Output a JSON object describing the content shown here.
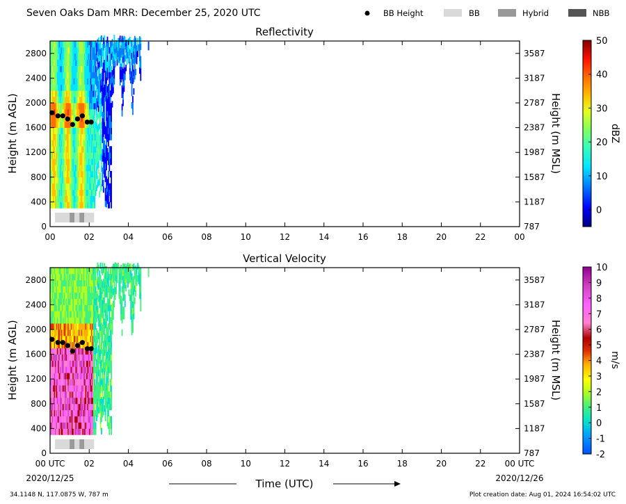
{
  "header": {
    "title": "Seven Oaks Dam MRR:  December 25, 2020 UTC",
    "legend": [
      "BB Height",
      "BB",
      "Hybrid",
      "NBB"
    ]
  },
  "footer": {
    "location": "34.1148 N, 117.0875 W, 787 m",
    "creation": "Plot creation date: Aug 01, 2024 16:54:02 UTC",
    "date_left": "2020/12/25",
    "date_right": "2020/12/26"
  },
  "colors": {
    "bb_light": "#d9d9d9",
    "hybrid": "#999999",
    "nbb": "#555555"
  },
  "chart_data": [
    {
      "type": "heatmap",
      "title": "Reflectivity",
      "xlabel": "Time (UTC)",
      "ylabel": "Height (m AGL)",
      "ylabel_right": "Height (m MSL)",
      "xlim": [
        0,
        24
      ],
      "ylim": [
        0,
        3000
      ],
      "xticks": [
        "00",
        "02",
        "04",
        "06",
        "08",
        "10",
        "12",
        "14",
        "16",
        "18",
        "20",
        "22",
        "00"
      ],
      "yticks": [
        0,
        400,
        800,
        1200,
        1600,
        2000,
        2400,
        2800
      ],
      "yticks_right": [
        "787",
        "1187",
        "1587",
        "1987",
        "2387",
        "2787",
        "3187",
        "3587"
      ],
      "colorbar": {
        "label": "dBZ",
        "min": -5,
        "max": 50,
        "ticks": [
          0,
          10,
          20,
          30,
          40,
          50
        ]
      },
      "bb_height": {
        "time": [
          0.1,
          0.4,
          0.65,
          0.9,
          1.15,
          1.4,
          1.65,
          1.9,
          2.1
        ],
        "height": [
          1840,
          1790,
          1790,
          1740,
          1650,
          1740,
          1790,
          1690,
          1690
        ]
      },
      "bb_type": [
        {
          "start": 0.25,
          "end": 1.0,
          "kind": "BB"
        },
        {
          "start": 1.0,
          "end": 1.25,
          "kind": "Hybrid"
        },
        {
          "start": 1.25,
          "end": 1.5,
          "kind": "BB"
        },
        {
          "start": 1.5,
          "end": 1.75,
          "kind": "Hybrid"
        },
        {
          "start": 1.75,
          "end": 2.25,
          "kind": "BB"
        }
      ]
    },
    {
      "type": "heatmap",
      "title": "Vertical Velocity",
      "xlabel": "Time (UTC)",
      "ylabel": "Height (m AGL)",
      "ylabel_right": "Height (m MSL)",
      "xlim": [
        0,
        24
      ],
      "ylim": [
        0,
        3000
      ],
      "xticks": [
        "00 UTC",
        "02",
        "04",
        "06",
        "08",
        "10",
        "12",
        "14",
        "16",
        "18",
        "20",
        "22",
        "00 UTC"
      ],
      "yticks": [
        0,
        400,
        800,
        1200,
        1600,
        2000,
        2400,
        2800
      ],
      "yticks_right": [
        "787",
        "1187",
        "1587",
        "1987",
        "2387",
        "2787",
        "3187",
        "3587"
      ],
      "colorbar": {
        "label": "m/s",
        "min": -2,
        "max": 10,
        "ticks": [
          -2,
          -1,
          0,
          1,
          2,
          3,
          4,
          5,
          6,
          7,
          8,
          9,
          10
        ]
      },
      "bb_height": {
        "time": [
          0.1,
          0.4,
          0.65,
          0.9,
          1.15,
          1.4,
          1.65,
          1.9,
          2.1
        ],
        "height": [
          1840,
          1790,
          1790,
          1740,
          1650,
          1740,
          1790,
          1690,
          1690
        ]
      },
      "bb_type": [
        {
          "start": 0.25,
          "end": 1.0,
          "kind": "BB"
        },
        {
          "start": 1.0,
          "end": 1.25,
          "kind": "Hybrid"
        },
        {
          "start": 1.25,
          "end": 1.5,
          "kind": "BB"
        },
        {
          "start": 1.5,
          "end": 1.75,
          "kind": "Hybrid"
        },
        {
          "start": 1.75,
          "end": 2.25,
          "kind": "BB"
        }
      ]
    }
  ]
}
